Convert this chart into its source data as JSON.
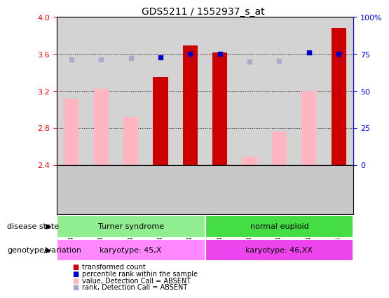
{
  "title": "GDS5211 / 1552937_s_at",
  "samples": [
    "GSM1411021",
    "GSM1411022",
    "GSM1411023",
    "GSM1411024",
    "GSM1411025",
    "GSM1411026",
    "GSM1411027",
    "GSM1411028",
    "GSM1411029",
    "GSM1411030"
  ],
  "transformed_count": [
    null,
    null,
    null,
    3.35,
    3.69,
    3.62,
    null,
    null,
    null,
    3.88
  ],
  "transformed_count_absent": [
    3.12,
    3.22,
    2.92,
    null,
    null,
    null,
    2.49,
    2.76,
    3.2,
    null
  ],
  "percentile_rank": [
    null,
    null,
    null,
    3.565,
    3.605,
    3.605,
    null,
    null,
    3.615,
    3.605
  ],
  "percentile_rank_absent": [
    3.545,
    3.545,
    3.555,
    null,
    null,
    null,
    3.52,
    3.525,
    null,
    null
  ],
  "ylim": [
    2.4,
    4.0
  ],
  "yticks": [
    2.4,
    2.8,
    3.2,
    3.6,
    4.0
  ],
  "right_yticks_pct": [
    0,
    25,
    50,
    75,
    100
  ],
  "right_ylabels": [
    "0",
    "25",
    "50",
    "75",
    "100%"
  ],
  "disease_state_groups": [
    {
      "label": "Turner syndrome",
      "start": 0,
      "end": 4,
      "color": "#90EE90"
    },
    {
      "label": "normal euploid",
      "start": 5,
      "end": 9,
      "color": "#44DD44"
    }
  ],
  "genotype_groups": [
    {
      "label": "karyotype: 45,X",
      "start": 0,
      "end": 4,
      "color": "#FF88FF"
    },
    {
      "label": "karyotype: 46,XX",
      "start": 5,
      "end": 9,
      "color": "#EE44EE"
    }
  ],
  "bar_color_dark_red": "#CC0000",
  "bar_color_pink": "#FFB6C1",
  "dot_color_dark_blue": "#0000CC",
  "dot_color_light_blue": "#AAAACC"
}
